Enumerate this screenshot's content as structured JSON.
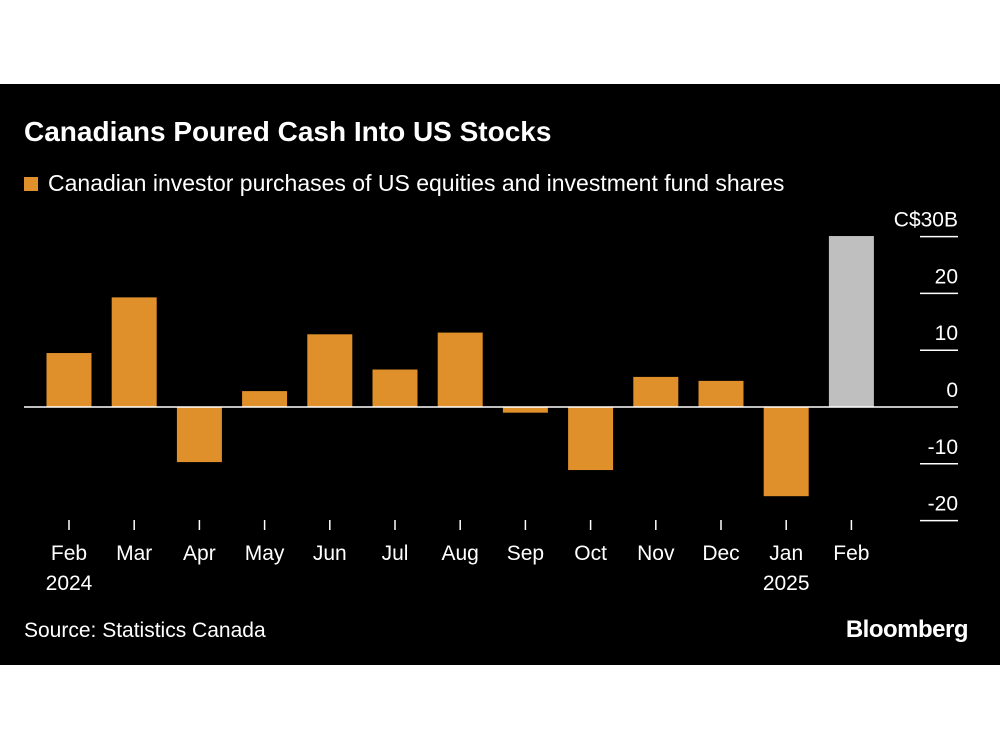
{
  "chart_data": {
    "type": "bar",
    "title": "Canadians Poured Cash Into US Stocks",
    "series": [
      {
        "name": "Canadian investor purchases of US equities and investment fund shares",
        "color": "#e0902a",
        "values": [
          9.5,
          19.3,
          -9.7,
          2.8,
          12.8,
          6.6,
          13.1,
          -1.0,
          -11.1,
          5.3,
          4.6,
          -15.7,
          30.1
        ]
      }
    ],
    "categories": [
      "Feb",
      "Mar",
      "Apr",
      "May",
      "Jun",
      "Jul",
      "Aug",
      "Sep",
      "Oct",
      "Nov",
      "Dec",
      "Jan",
      "Feb"
    ],
    "year_labels": [
      "2024",
      "",
      "",
      "",
      "",
      "",
      "",
      "",
      "",
      "",
      "",
      "2025",
      ""
    ],
    "highlight_index": 12,
    "highlight_color": "#bfbfbf",
    "ylim": [
      -20,
      30
    ],
    "yticks": [
      {
        "value": 30,
        "label": "C$30B"
      },
      {
        "value": 20,
        "label": "20"
      },
      {
        "value": 10,
        "label": "10"
      },
      {
        "value": 0,
        "label": "0"
      },
      {
        "value": -10,
        "label": "-10"
      },
      {
        "value": -20,
        "label": "-20"
      }
    ],
    "xlabel": "",
    "ylabel": "",
    "source": "Source: Statistics Canada",
    "brand": "Bloomberg"
  }
}
